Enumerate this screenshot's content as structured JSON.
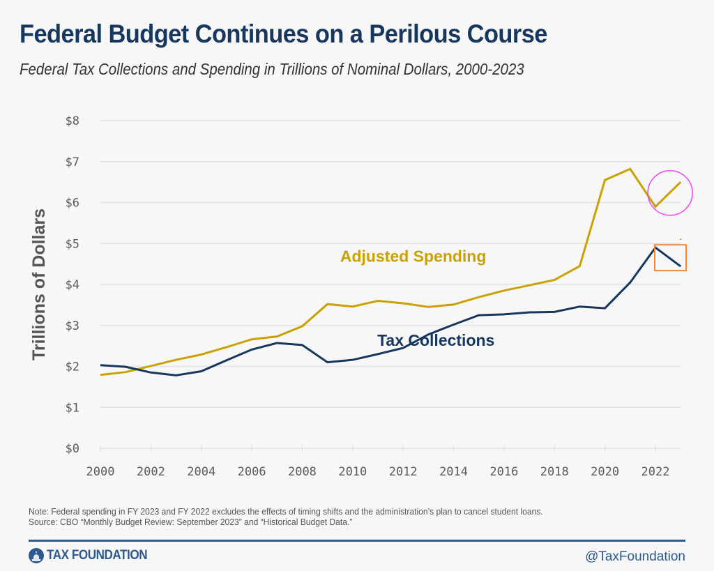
{
  "header": {
    "title": "Federal Budget Continues on a Perilous Course",
    "subtitle": "Federal Tax Collections and Spending in Trillions of Nominal Dollars, 2000-2023"
  },
  "chart_data": {
    "type": "line",
    "title": "Federal Budget Continues on a Perilous Course",
    "subtitle": "Federal Tax Collections and Spending in Trillions of Nominal Dollars, 2000-2023",
    "xlabel": "",
    "ylabel": "Trillions of Dollars",
    "x": [
      2000,
      2001,
      2002,
      2003,
      2004,
      2005,
      2006,
      2007,
      2008,
      2009,
      2010,
      2011,
      2012,
      2013,
      2014,
      2015,
      2016,
      2017,
      2018,
      2019,
      2020,
      2021,
      2022,
      2023
    ],
    "xlim": [
      2000,
      2023
    ],
    "ylim": [
      0,
      8
    ],
    "grid": true,
    "x_ticks": [
      "2000",
      "2002",
      "2004",
      "2006",
      "2008",
      "2010",
      "2012",
      "2014",
      "2016",
      "2018",
      "2020",
      "2022"
    ],
    "x_tick_values": [
      2000,
      2002,
      2004,
      2006,
      2008,
      2010,
      2012,
      2014,
      2016,
      2018,
      2020,
      2022
    ],
    "y_ticks": [
      "$0",
      "$1",
      "$2",
      "$3",
      "$4",
      "$5",
      "$6",
      "$7",
      "$8"
    ],
    "y_tick_values": [
      0,
      1,
      2,
      3,
      4,
      5,
      6,
      7,
      8
    ],
    "legend": "inline labels",
    "series": [
      {
        "name": "Adjusted Spending",
        "color": "#c9a100",
        "values": [
          1.79,
          1.86,
          2.01,
          2.16,
          2.29,
          2.47,
          2.66,
          2.73,
          2.98,
          3.52,
          3.46,
          3.6,
          3.54,
          3.45,
          3.51,
          3.69,
          3.85,
          3.98,
          4.11,
          4.45,
          6.55,
          6.82,
          5.9,
          6.5
        ],
        "label_anchor": {
          "x": 2012.4,
          "y": 4.55
        }
      },
      {
        "name": "Tax Collections",
        "color": "#17375e",
        "values": [
          2.03,
          1.99,
          1.85,
          1.78,
          1.88,
          2.15,
          2.41,
          2.57,
          2.52,
          2.1,
          2.16,
          2.3,
          2.45,
          2.78,
          3.02,
          3.25,
          3.27,
          3.32,
          3.33,
          3.46,
          3.42,
          4.05,
          4.9,
          4.44
        ],
        "label_anchor": {
          "x": 2013.3,
          "y": 2.5
        }
      }
    ],
    "annotations": [
      {
        "type": "circle",
        "color": "#ee44ee",
        "target": "Adjusted Spending 2022-2023"
      },
      {
        "type": "rectangle",
        "color": "#f28a3c",
        "target": "Tax Collections 2022-2023"
      }
    ]
  },
  "footer": {
    "note": "Note: Federal spending in FY 2023 and FY 2022 excludes the effects of timing shifts and the administration’s plan to cancel student loans.",
    "source": "Source: CBO “Monthly Budget Review: September 2023” and “Historical Budget Data.”",
    "brand": "TAX FOUNDATION",
    "handle": "@TaxFoundation",
    "brand_color": "#2c5a8c"
  }
}
